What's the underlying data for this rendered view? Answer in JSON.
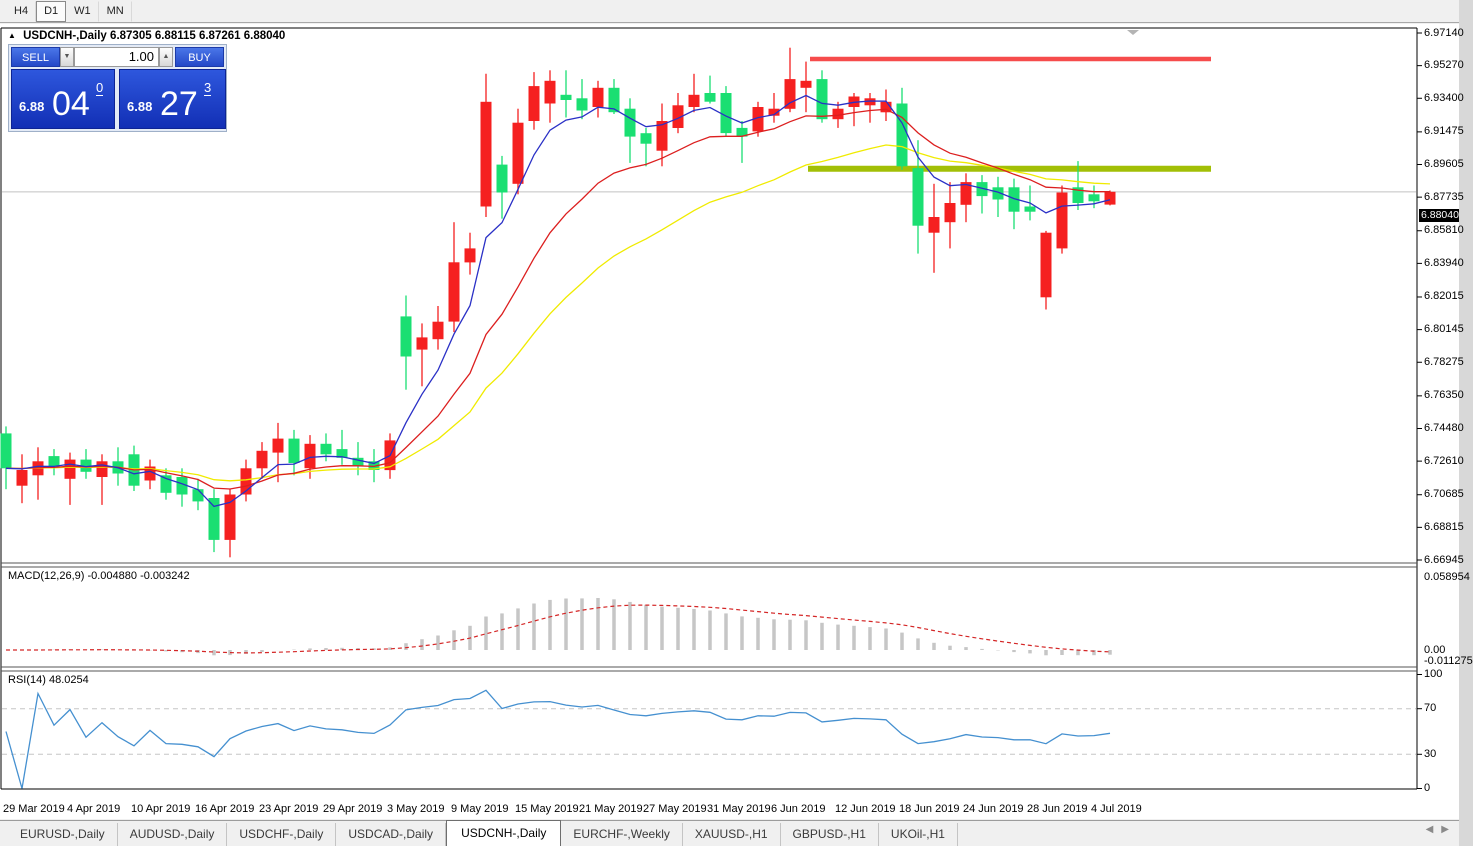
{
  "toolbar": {
    "timeframes": [
      {
        "label": "H4",
        "active": false
      },
      {
        "label": "D1",
        "active": true
      },
      {
        "label": "W1",
        "active": false
      },
      {
        "label": "MN",
        "active": false
      }
    ]
  },
  "header": {
    "symbol": "USDCNH-,Daily",
    "open": "6.87305",
    "high": "6.88115",
    "low": "6.87261",
    "close": "6.88040"
  },
  "trade_panel": {
    "sell_label": "SELL",
    "buy_label": "BUY",
    "volume": "1.00",
    "sell_price": {
      "base": "6.88",
      "big": "04",
      "sup": "0"
    },
    "buy_price": {
      "base": "6.88",
      "big": "27",
      "sup": "3"
    }
  },
  "price_scale": [
    "6.97140",
    "6.95270",
    "6.93400",
    "6.91475",
    "6.89605",
    "6.87735",
    "6.85810",
    "6.83940",
    "6.82015",
    "6.80145",
    "6.78275",
    "6.76350",
    "6.74480",
    "6.72610",
    "6.70685",
    "6.68815",
    "6.66945"
  ],
  "current_price": "6.88040",
  "indicators": {
    "macd": {
      "label": "MACD(12,26,9) -0.004880 -0.003242",
      "scale": [
        "0.058954",
        "0.00",
        "-0.011275"
      ]
    },
    "rsi": {
      "label": "RSI(14) 48.0254",
      "scale": [
        "100",
        "70",
        "30",
        "0"
      ],
      "levels": [
        70,
        30
      ]
    }
  },
  "x_axis": {
    "labels": [
      {
        "text": "29 Mar 2019",
        "index": 0
      },
      {
        "text": "4 Apr 2019",
        "index": 4
      },
      {
        "text": "10 Apr 2019",
        "index": 8
      },
      {
        "text": "16 Apr 2019",
        "index": 12
      },
      {
        "text": "23 Apr 2019",
        "index": 16
      },
      {
        "text": "29 Apr 2019",
        "index": 20
      },
      {
        "text": "3 May 2019",
        "index": 24
      },
      {
        "text": "9 May 2019",
        "index": 28
      },
      {
        "text": "15 May 2019",
        "index": 32
      },
      {
        "text": "21 May 2019",
        "index": 36
      },
      {
        "text": "27 May 2019",
        "index": 40
      },
      {
        "text": "31 May 2019",
        "index": 44
      },
      {
        "text": "6 Jun 2019",
        "index": 48
      },
      {
        "text": "12 Jun 2019",
        "index": 52
      },
      {
        "text": "18 Jun 2019",
        "index": 56
      },
      {
        "text": "24 Jun 2019",
        "index": 60
      },
      {
        "text": "28 Jun 2019",
        "index": 64
      },
      {
        "text": "4 Jul 2019",
        "index": 68
      }
    ]
  },
  "tabs": [
    "EURUSD-,Daily",
    "AUDUSD-,Daily",
    "USDCHF-,Daily",
    "USDCAD-,Daily",
    "USDCNH-,Daily",
    "EURCHF-,Weekly",
    "XAUUSD-,H1",
    "GBPUSD-,H1",
    "UKOil-,H1"
  ],
  "active_tab": 4,
  "colors": {
    "candle_up": "#f52020",
    "candle_down": "#1adf72",
    "ma_fast": "#2a30c6",
    "ma_mid": "#dc1f1f",
    "ma_slow": "#f0eb00",
    "resistance": "#f64c4c",
    "support": "#a2bf06",
    "macd_bar": "#c6c6c6",
    "macd_signal": "#d42626",
    "rsi_line": "#4590d0",
    "level_dash": "#c5c5c5",
    "price_line": "#c2c2c2"
  },
  "chart_data": {
    "type": "candlestick",
    "symbol": "USDCNH-",
    "timeframe": "Daily",
    "ylim": [
      6.66945,
      6.9714
    ],
    "candles": [
      [
        6.742,
        6.746,
        6.71,
        6.722
      ],
      [
        6.712,
        6.73,
        6.702,
        6.721
      ],
      [
        6.718,
        6.734,
        6.704,
        6.726
      ],
      [
        6.729,
        6.733,
        6.718,
        6.723
      ],
      [
        6.716,
        6.731,
        6.701,
        6.727
      ],
      [
        6.727,
        6.733,
        6.716,
        6.72
      ],
      [
        6.717,
        6.73,
        6.701,
        6.726
      ],
      [
        6.726,
        6.734,
        6.712,
        6.719
      ],
      [
        6.73,
        6.735,
        6.709,
        6.712
      ],
      [
        6.715,
        6.727,
        6.71,
        6.723
      ],
      [
        6.718,
        6.722,
        6.704,
        6.708
      ],
      [
        6.717,
        6.722,
        6.7,
        6.707
      ],
      [
        6.71,
        6.716,
        6.698,
        6.703
      ],
      [
        6.705,
        6.71,
        6.674,
        6.681
      ],
      [
        6.681,
        6.71,
        6.671,
        6.707
      ],
      [
        6.707,
        6.727,
        6.703,
        6.722
      ],
      [
        6.722,
        6.737,
        6.716,
        6.732
      ],
      [
        6.731,
        6.748,
        6.714,
        6.739
      ],
      [
        6.739,
        6.744,
        6.718,
        6.725
      ],
      [
        6.722,
        6.741,
        6.716,
        6.736
      ],
      [
        6.736,
        6.742,
        6.726,
        6.73
      ],
      [
        6.733,
        6.744,
        6.724,
        6.728
      ],
      [
        6.728,
        6.737,
        6.718,
        6.723
      ],
      [
        6.726,
        6.733,
        6.714,
        6.721
      ],
      [
        6.721,
        6.742,
        6.716,
        6.738
      ],
      [
        6.809,
        6.821,
        6.767,
        6.786
      ],
      [
        6.79,
        6.805,
        6.769,
        6.797
      ],
      [
        6.796,
        6.815,
        6.79,
        6.806
      ],
      [
        6.806,
        6.863,
        6.8,
        6.84
      ],
      [
        6.84,
        6.857,
        6.833,
        6.848
      ],
      [
        6.872,
        6.948,
        6.866,
        6.932
      ],
      [
        6.896,
        6.901,
        6.865,
        6.88
      ],
      [
        6.885,
        6.928,
        6.879,
        6.92
      ],
      [
        6.921,
        6.949,
        6.916,
        6.941
      ],
      [
        6.931,
        6.95,
        6.92,
        6.944
      ],
      [
        6.936,
        6.95,
        6.923,
        6.933
      ],
      [
        6.934,
        6.945,
        6.922,
        6.927
      ],
      [
        6.929,
        6.944,
        6.923,
        6.94
      ],
      [
        6.94,
        6.945,
        6.925,
        6.926
      ],
      [
        6.928,
        6.934,
        6.897,
        6.912
      ],
      [
        6.914,
        6.917,
        6.895,
        6.908
      ],
      [
        6.904,
        6.931,
        6.895,
        6.921
      ],
      [
        6.917,
        6.937,
        6.914,
        6.93
      ],
      [
        6.929,
        6.948,
        6.926,
        6.936
      ],
      [
        6.937,
        6.947,
        6.931,
        6.932
      ],
      [
        6.937,
        6.941,
        6.912,
        6.914
      ],
      [
        6.917,
        6.921,
        6.897,
        6.912
      ],
      [
        6.915,
        6.932,
        6.912,
        6.929
      ],
      [
        6.924,
        6.937,
        6.92,
        6.928
      ],
      [
        6.928,
        6.963,
        6.926,
        6.945
      ],
      [
        6.94,
        6.955,
        6.926,
        6.944
      ],
      [
        6.945,
        6.95,
        6.92,
        6.922
      ],
      [
        6.922,
        6.932,
        6.917,
        6.928
      ],
      [
        6.929,
        6.937,
        6.918,
        6.935
      ],
      [
        6.93,
        6.937,
        6.92,
        6.934
      ],
      [
        6.926,
        6.939,
        6.921,
        6.932
      ],
      [
        6.931,
        6.94,
        6.893,
        6.895
      ],
      [
        6.894,
        6.91,
        6.845,
        6.861
      ],
      [
        6.857,
        6.885,
        6.834,
        6.866
      ],
      [
        6.863,
        6.886,
        6.848,
        6.874
      ],
      [
        6.873,
        6.891,
        6.863,
        6.886
      ],
      [
        6.886,
        6.89,
        6.868,
        6.878
      ],
      [
        6.883,
        6.889,
        6.866,
        6.876
      ],
      [
        6.883,
        6.888,
        6.859,
        6.869
      ],
      [
        6.872,
        6.884,
        6.864,
        6.869
      ],
      [
        6.82,
        6.858,
        6.813,
        6.857
      ],
      [
        6.848,
        6.884,
        6.845,
        6.88
      ],
      [
        6.883,
        6.898,
        6.87,
        6.874
      ],
      [
        6.879,
        6.884,
        6.871,
        6.875
      ],
      [
        6.87305,
        6.88115,
        6.87261,
        6.8804
      ]
    ],
    "overlays": [
      {
        "name": "ma-fast",
        "method": "ema",
        "period": 5
      },
      {
        "name": "ma-mid",
        "method": "ema",
        "period": 13
      },
      {
        "name": "ma-slow",
        "method": "ema",
        "period": 25
      }
    ],
    "lines": {
      "resistance": {
        "price": 6.9565,
        "x1": 810,
        "x2": 1211
      },
      "support": {
        "price": 6.8936,
        "x1": 808,
        "x2": 1211
      }
    },
    "macd": {
      "fast": 12,
      "slow": 26,
      "signal": 9,
      "current": [
        -0.00488,
        -0.003242
      ]
    },
    "rsi": {
      "period": 14,
      "current": 48.0254
    }
  }
}
